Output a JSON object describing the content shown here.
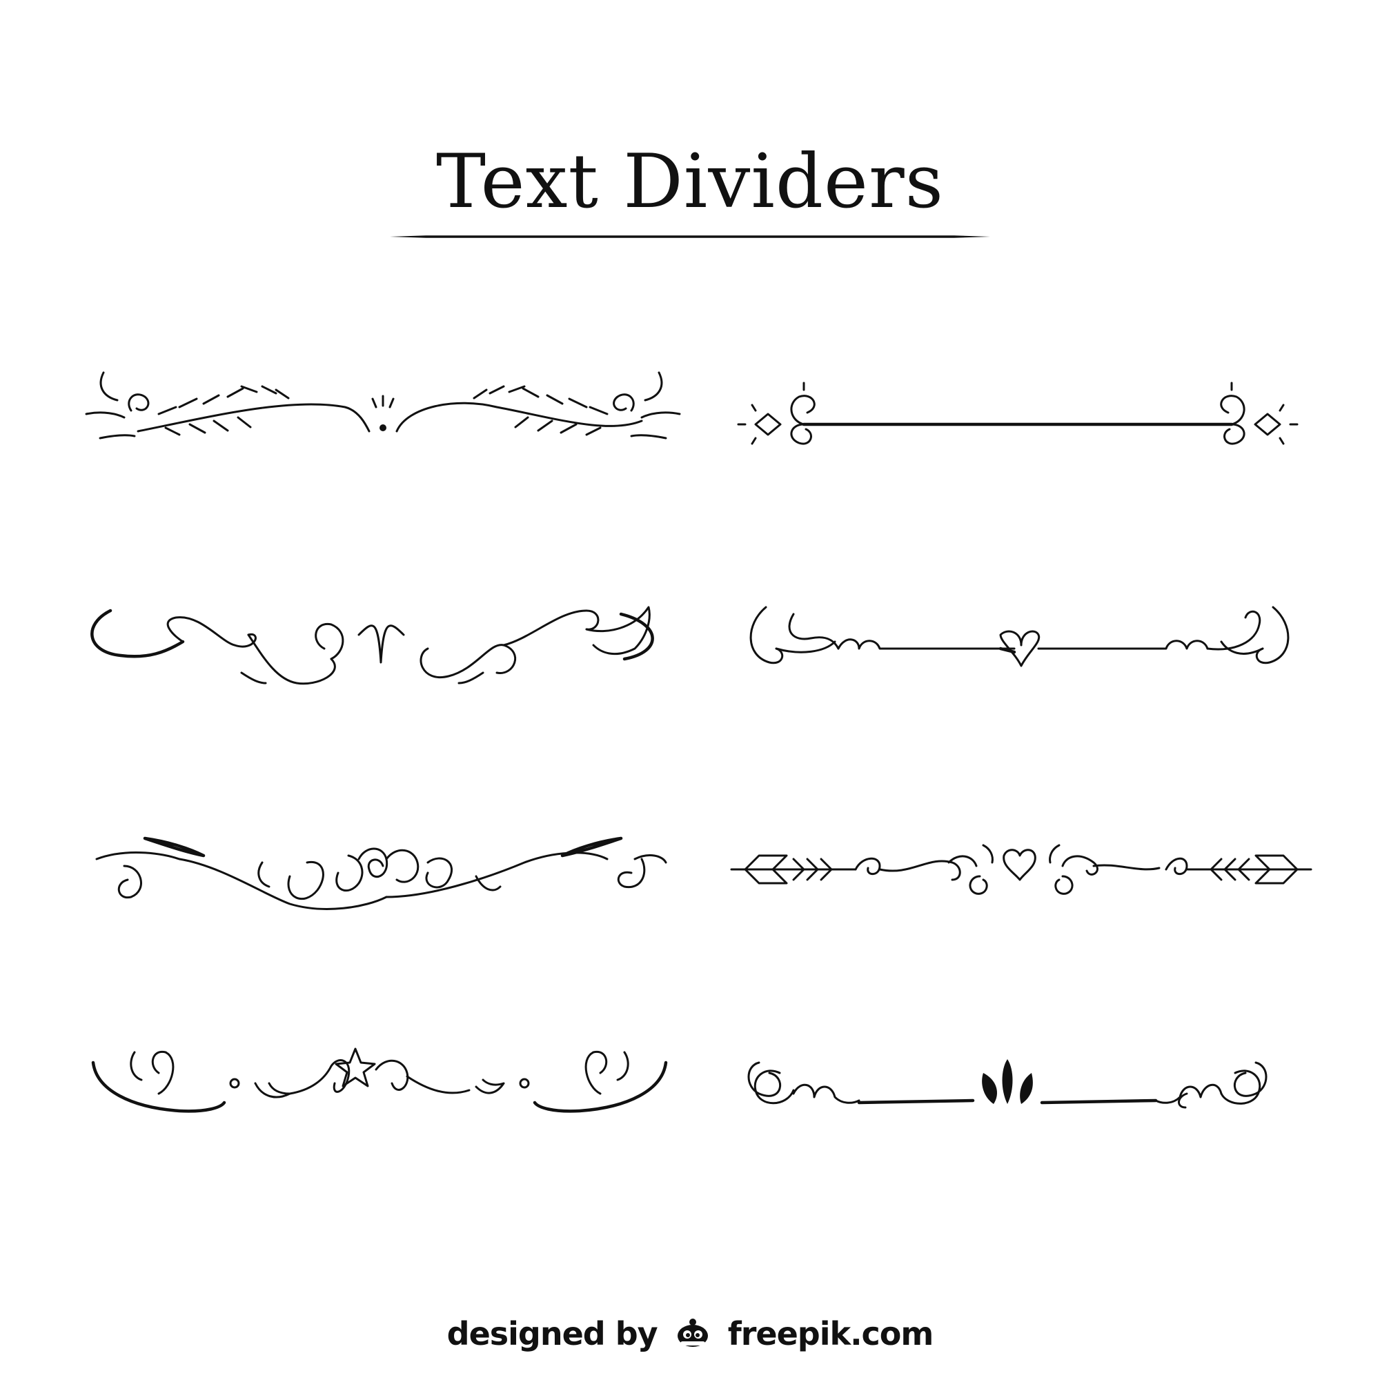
{
  "title": "Text Dividers",
  "credit": {
    "prefix": "designed by",
    "logo_icon": "freepik-mascot-icon",
    "site": "freepik.com"
  },
  "ink_color": "#111111",
  "background_color": "#ffffff",
  "dividers": [
    {
      "name": "leafy-sprig-divider",
      "column": "left",
      "row": 1
    },
    {
      "name": "diamond-bar-divider",
      "column": "right",
      "row": 1
    },
    {
      "name": "loop-swirl-divider",
      "column": "left",
      "row": 2
    },
    {
      "name": "heart-loop-divider",
      "column": "right",
      "row": 2
    },
    {
      "name": "flourish-scroll-divider",
      "column": "left",
      "row": 3
    },
    {
      "name": "arrow-heart-divider",
      "column": "right",
      "row": 3
    },
    {
      "name": "star-swirl-divider",
      "column": "left",
      "row": 4
    },
    {
      "name": "leaf-bud-divider",
      "column": "right",
      "row": 4
    }
  ]
}
